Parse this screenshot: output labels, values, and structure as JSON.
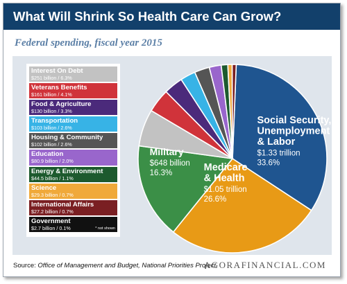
{
  "header": {
    "title": "What Will Shrink So Health Care Can Grow?"
  },
  "subtitle": "Federal spending, fiscal year 2015",
  "chart_data": {
    "type": "pie",
    "slices": [
      {
        "name": "Social Security, Unemployment & Labor",
        "value": 1330,
        "value_label": "$1.33 trillion",
        "percent": 33.6,
        "percent_label": "33.6%",
        "color": "#1f5590",
        "labeled": true
      },
      {
        "name": "Medicare & Health",
        "value": 1050,
        "value_label": "$1.05 trillion",
        "percent": 26.6,
        "percent_label": "26.6%",
        "color": "#e89a16",
        "labeled": true
      },
      {
        "name": "Military",
        "value": 648,
        "value_label": "$648 billion",
        "percent": 16.3,
        "percent_label": "16.3%",
        "color": "#3b8f47",
        "labeled": true
      },
      {
        "name": "Interest On Debt",
        "value": 251,
        "value_label": "$251 billion",
        "percent": 6.3,
        "percent_label": "6.3%",
        "color": "#c2c2c2",
        "labeled": false
      },
      {
        "name": "Veterans Benefits",
        "value": 161,
        "value_label": "$161 billion",
        "percent": 4.1,
        "percent_label": "4.1%",
        "color": "#d0333a",
        "labeled": false
      },
      {
        "name": "Food & Agriculture",
        "value": 130,
        "value_label": "$130 billion",
        "percent": 3.3,
        "percent_label": "3.3%",
        "color": "#4b2a7b",
        "labeled": false
      },
      {
        "name": "Transportation",
        "value": 103,
        "value_label": "$103 billion",
        "percent": 2.6,
        "percent_label": "2.6%",
        "color": "#37b3e6",
        "labeled": false
      },
      {
        "name": "Housing & Community",
        "value": 102,
        "value_label": "$102 billion",
        "percent": 2.6,
        "percent_label": "2.6%",
        "color": "#555555",
        "labeled": false
      },
      {
        "name": "Education",
        "value": 80.9,
        "value_label": "$80.9 billion",
        "percent": 2.0,
        "percent_label": "2.0%",
        "color": "#9966cc",
        "labeled": false
      },
      {
        "name": "Energy & Environment",
        "value": 44.5,
        "value_label": "$44.5 billion",
        "percent": 1.1,
        "percent_label": "1.1%",
        "color": "#1d5a2e",
        "labeled": false
      },
      {
        "name": "Science",
        "value": 29.3,
        "value_label": "$29.3 billion",
        "percent": 0.7,
        "percent_label": "0.7%",
        "color": "#f0a93a",
        "labeled": false
      },
      {
        "name": "International Affairs",
        "value": 27.2,
        "value_label": "$27.2 billion",
        "percent": 0.7,
        "percent_label": "0.7%",
        "color": "#7a1f22",
        "labeled": false
      },
      {
        "name": "Government",
        "value": 2.7,
        "value_label": "$2.7 billion",
        "percent": 0.1,
        "percent_label": "0.1%",
        "color": "#111111",
        "labeled": false,
        "shown": false
      }
    ],
    "legend_order": [
      "Interest On Debt",
      "Veterans Benefits",
      "Food & Agriculture",
      "Transportation",
      "Housing & Community",
      "Education",
      "Energy & Environment",
      "Science",
      "International Affairs",
      "Government"
    ],
    "legend_placement": "left",
    "not_shown_note": "* not shown"
  },
  "footer": {
    "source_prefix": "Source: ",
    "source_text": "Office of Management and Budget, National Priorities Project",
    "brand": "AGORAFINANCIAL.COM"
  }
}
